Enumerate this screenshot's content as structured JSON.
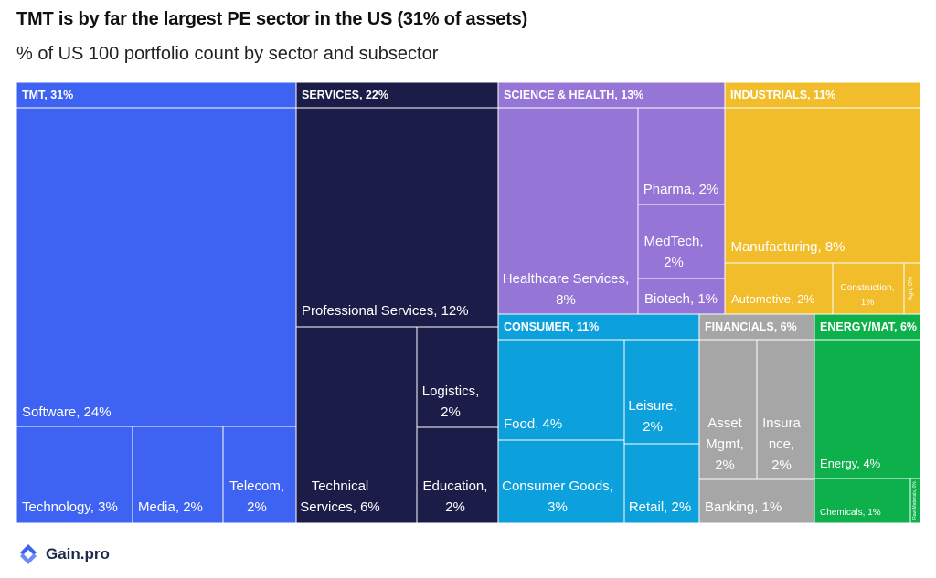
{
  "title": "TMT is by far the largest PE sector in the US (31% of assets)",
  "subtitle": "% of US 100 portfolio count by sector and subsector",
  "logo_text": "Gain.pro",
  "chart_data": {
    "type": "treemap",
    "unit": "%",
    "sectors": [
      {
        "label": "TMT, 31%",
        "name": "TMT",
        "value": 31,
        "color": "#3e63f2",
        "children": [
          {
            "label": "Software, 24%",
            "name": "Software",
            "value": 24
          },
          {
            "label": "Technology, 3%",
            "name": "Technology",
            "value": 3
          },
          {
            "label": "Media, 2%",
            "name": "Media",
            "value": 2
          },
          {
            "label": "Telecom, 2%",
            "name": "Telecom",
            "value": 2
          }
        ]
      },
      {
        "label": "SERVICES, 22%",
        "name": "SERVICES",
        "value": 22,
        "color": "#1b1d48",
        "children": [
          {
            "label": "Professional Services, 12%",
            "name": "Professional Services",
            "value": 12
          },
          {
            "label": "Technical Services, 6%",
            "name": "Technical Services",
            "value": 6
          },
          {
            "label": "Logistics, 2%",
            "name": "Logistics",
            "value": 2
          },
          {
            "label": "Education, 2%",
            "name": "Education",
            "value": 2
          }
        ]
      },
      {
        "label": "SCIENCE & HEALTH, 13%",
        "name": "SCIENCE & HEALTH",
        "value": 13,
        "color": "#9575d6",
        "children": [
          {
            "label": "Healthcare Services, 8%",
            "name": "Healthcare Services",
            "value": 8
          },
          {
            "label": "Pharma, 2%",
            "name": "Pharma",
            "value": 2
          },
          {
            "label": "MedTech, 2%",
            "name": "MedTech",
            "value": 2
          },
          {
            "label": "Biotech, 1%",
            "name": "Biotech",
            "value": 1
          }
        ]
      },
      {
        "label": "INDUSTRIALS, 11%",
        "name": "INDUSTRIALS",
        "value": 11,
        "color": "#f1bd2a",
        "children": [
          {
            "label": "Manufacturing, 8%",
            "name": "Manufacturing",
            "value": 8
          },
          {
            "label": "Automotive, 2%",
            "name": "Automotive",
            "value": 2
          },
          {
            "label": "Construction, 1%",
            "name": "Construction",
            "value": 1
          },
          {
            "label": "Agri, 0%",
            "name": "Agri",
            "value": 0
          }
        ]
      },
      {
        "label": "CONSUMER, 11%",
        "name": "CONSUMER",
        "value": 11,
        "color": "#0ca1dc",
        "children": [
          {
            "label": "Food, 4%",
            "name": "Food",
            "value": 4
          },
          {
            "label": "Consumer Goods, 3%",
            "name": "Consumer Goods",
            "value": 3
          },
          {
            "label": "Leisure, 2%",
            "name": "Leisure",
            "value": 2
          },
          {
            "label": "Retail, 2%",
            "name": "Retail",
            "value": 2
          }
        ]
      },
      {
        "label": "FINANCIALS, 6%",
        "name": "FINANCIALS",
        "value": 6,
        "color": "#a6a6a6",
        "children": [
          {
            "label": "Asset Mgmt, 2%",
            "name": "Asset Mgmt",
            "value": 2
          },
          {
            "label": "Insurance, 2%",
            "name": "Insurance",
            "value": 2
          },
          {
            "label": "Banking, 1%",
            "name": "Banking",
            "value": 1
          }
        ]
      },
      {
        "label": "ENERGY/MAT, 6%",
        "name": "ENERGY/MAT",
        "value": 6,
        "color": "#0db04b",
        "children": [
          {
            "label": "Energy, 4%",
            "name": "Energy",
            "value": 4
          },
          {
            "label": "Chemicals, 1%",
            "name": "Chemicals",
            "value": 1
          },
          {
            "label": "Raw Materials, 0%",
            "name": "Raw Materials",
            "value": 0
          }
        ]
      }
    ]
  }
}
